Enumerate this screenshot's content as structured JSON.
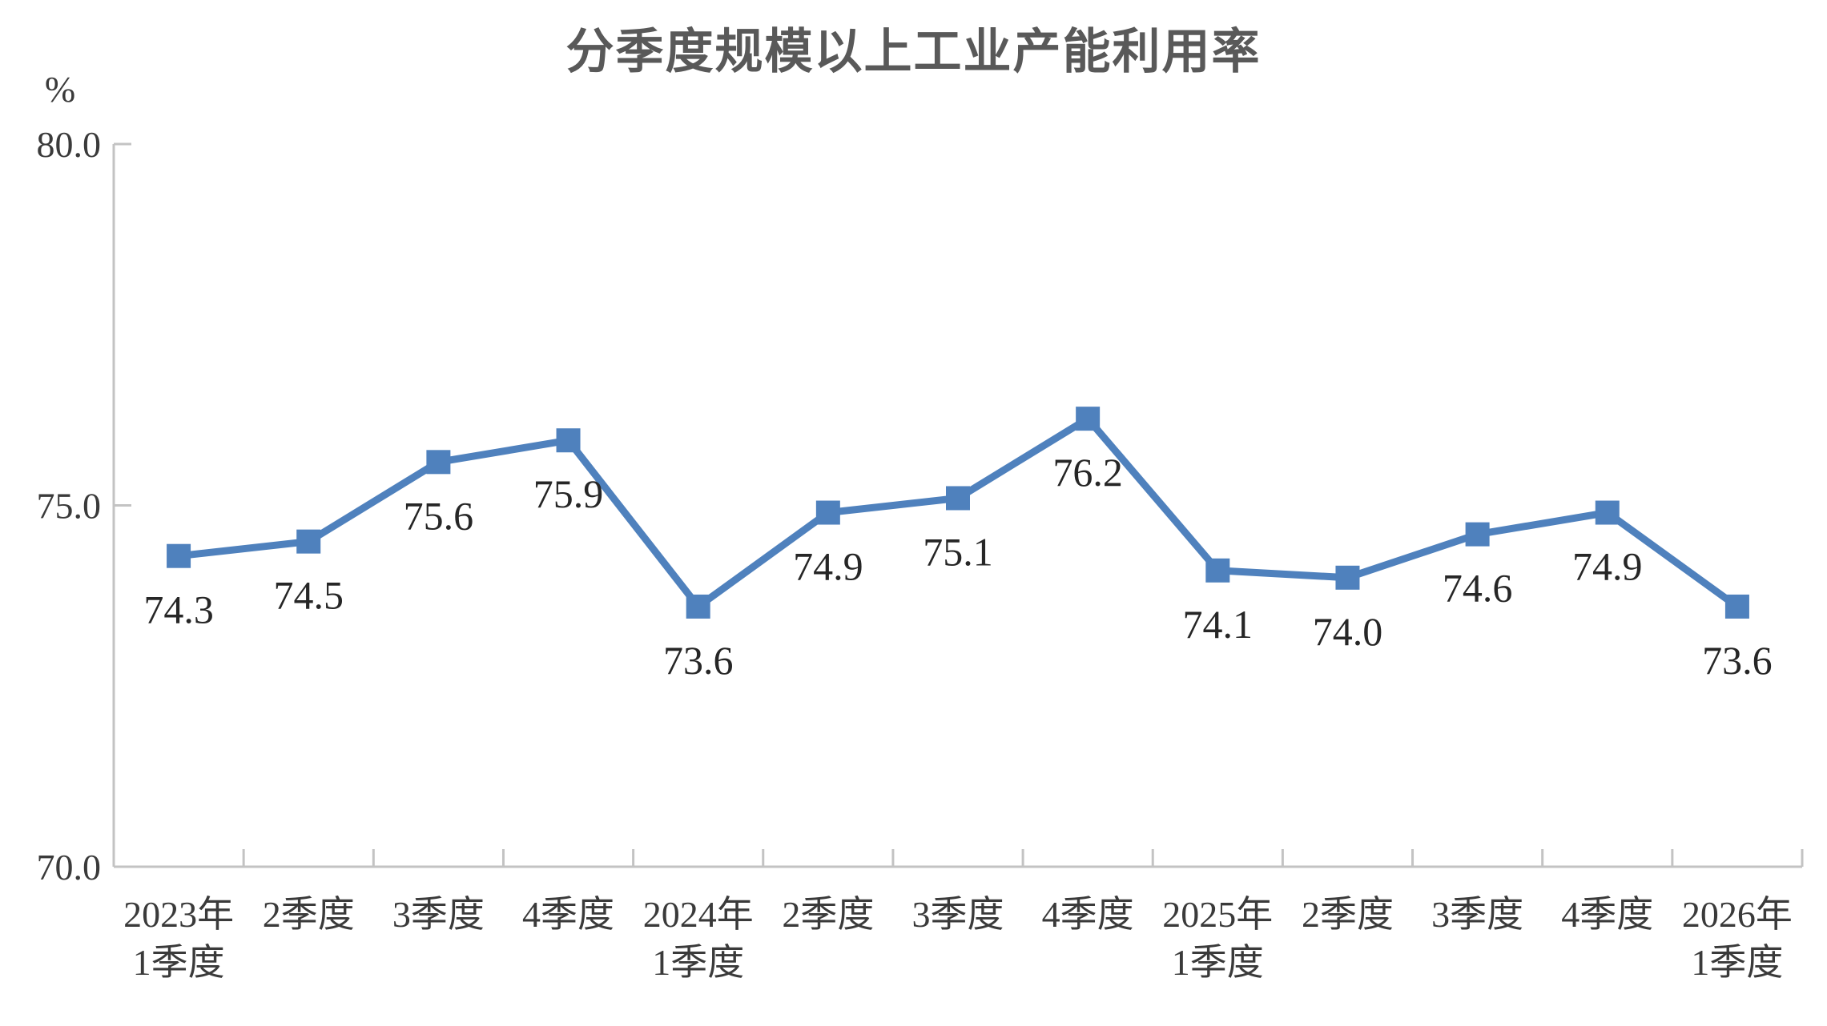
{
  "chart": {
    "title": "分季度规模以上工业产能利用率",
    "y_unit": "%"
  },
  "chart_data": {
    "type": "line",
    "title": "分季度规模以上工业产能利用率",
    "ylabel": "%",
    "ylim": [
      70.0,
      80.0
    ],
    "yticks": [
      80.0,
      75.0,
      70.0
    ],
    "ytick_labels": [
      "80.0",
      "75.0",
      "70.0"
    ],
    "categories": [
      [
        "2023年",
        "1季度"
      ],
      [
        "2季度"
      ],
      [
        "3季度"
      ],
      [
        "4季度"
      ],
      [
        "2024年",
        "1季度"
      ],
      [
        "2季度"
      ],
      [
        "3季度"
      ],
      [
        "4季度"
      ],
      [
        "2025年",
        "1季度"
      ],
      [
        "2季度"
      ],
      [
        "3季度"
      ],
      [
        "4季度"
      ],
      [
        "2026年",
        "1季度"
      ]
    ],
    "values": [
      74.3,
      74.5,
      75.6,
      75.9,
      73.6,
      74.9,
      75.1,
      76.2,
      74.1,
      74.0,
      74.6,
      74.9,
      73.6
    ],
    "value_labels": [
      "74.3",
      "74.5",
      "75.6",
      "75.9",
      "73.6",
      "74.9",
      "75.1",
      "76.2",
      "74.1",
      "74.0",
      "74.6",
      "74.9",
      "73.6"
    ],
    "grid": false,
    "legend": "none",
    "marker": "square",
    "line_color": "#4F81BD",
    "axis_color": "#C3C3C3",
    "title_color": "#595959",
    "tick_label_color": "#3A3A3A",
    "data_label_color": "#262626"
  }
}
